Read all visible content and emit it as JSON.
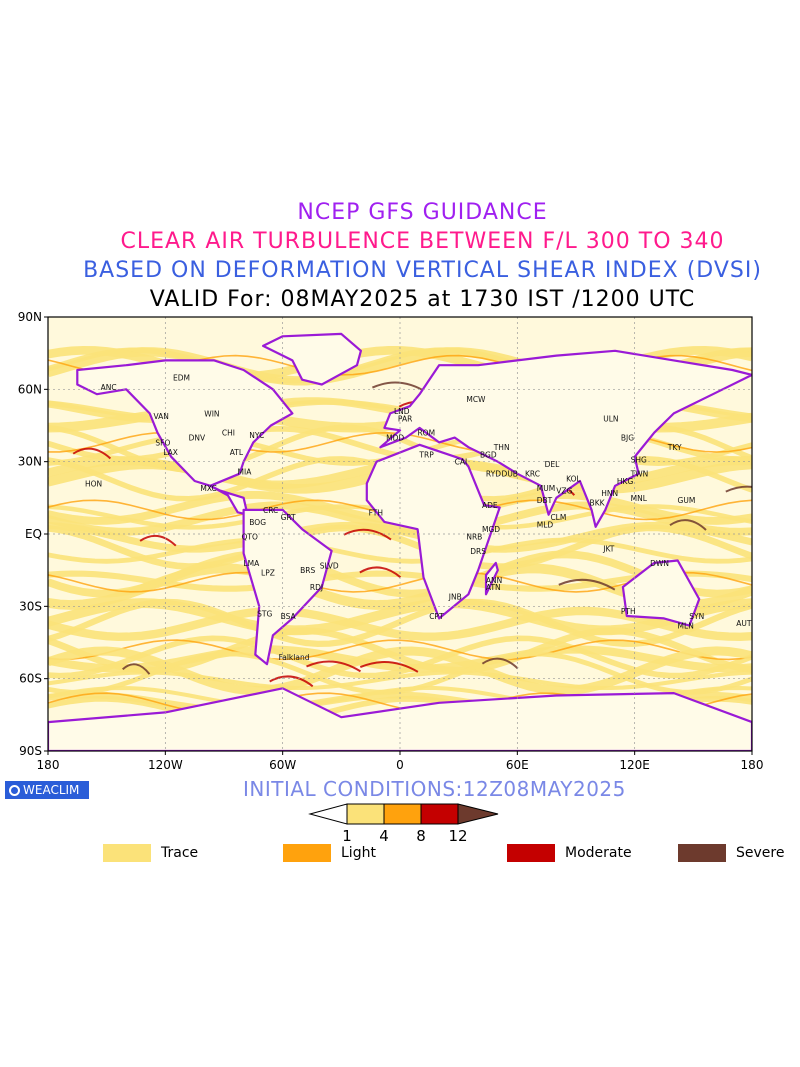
{
  "titles": {
    "line1": "NCEP GFS GUIDANCE",
    "line2": "CLEAR AIR TURBULENCE BETWEEN F/L 300 TO 340",
    "line3": "BASED ON DEFORMATION VERTICAL SHEAR INDEX (DVSI)",
    "line4": "VALID For: 08MAY2025 at 1730 IST /1200 UTC"
  },
  "axes": {
    "lat_labels": [
      "90N",
      "60N",
      "30N",
      "EQ",
      "30S",
      "60S",
      "90S"
    ],
    "lon_labels": [
      "180",
      "120W",
      "60W",
      "0",
      "60E",
      "120E",
      "180"
    ]
  },
  "stations": [
    {
      "name": "ANC",
      "lon": -150,
      "lat": 61
    },
    {
      "name": "EDM",
      "lon": -113,
      "lat": 65
    },
    {
      "name": "VAN",
      "lon": -123,
      "lat": 49
    },
    {
      "name": "WIN",
      "lon": -97,
      "lat": 50
    },
    {
      "name": "SFO",
      "lon": -122,
      "lat": 38
    },
    {
      "name": "LAX",
      "lon": -118,
      "lat": 34
    },
    {
      "name": "DNV",
      "lon": -105,
      "lat": 40
    },
    {
      "name": "CHI",
      "lon": -88,
      "lat": 42
    },
    {
      "name": "NYC",
      "lon": -74,
      "lat": 41
    },
    {
      "name": "ATL",
      "lon": -84,
      "lat": 34
    },
    {
      "name": "MIA",
      "lon": -80,
      "lat": 26
    },
    {
      "name": "MXC",
      "lon": -99,
      "lat": 19
    },
    {
      "name": "HON",
      "lon": -158,
      "lat": 21
    },
    {
      "name": "BOG",
      "lon": -74,
      "lat": 5
    },
    {
      "name": "CRC",
      "lon": -67,
      "lat": 10
    },
    {
      "name": "GRT",
      "lon": -58,
      "lat": 7
    },
    {
      "name": "QTO",
      "lon": -78,
      "lat": -1
    },
    {
      "name": "LMA",
      "lon": -77,
      "lat": -12
    },
    {
      "name": "LPZ",
      "lon": -68,
      "lat": -16
    },
    {
      "name": "BRS",
      "lon": -48,
      "lat": -15
    },
    {
      "name": "SLVD",
      "lon": -38,
      "lat": -13
    },
    {
      "name": "RDJ",
      "lon": -43,
      "lat": -22
    },
    {
      "name": "STG",
      "lon": -70,
      "lat": -33
    },
    {
      "name": "BSA",
      "lon": -58,
      "lat": -34
    },
    {
      "name": "Falkland",
      "lon": -59,
      "lat": -51
    },
    {
      "name": "LND",
      "lon": 0,
      "lat": 51
    },
    {
      "name": "PAR",
      "lon": 2,
      "lat": 48
    },
    {
      "name": "MDD",
      "lon": -4,
      "lat": 40
    },
    {
      "name": "ROM",
      "lon": 12,
      "lat": 42
    },
    {
      "name": "MCW",
      "lon": 37,
      "lat": 56
    },
    {
      "name": "TRP",
      "lon": 13,
      "lat": 33
    },
    {
      "name": "CAI",
      "lon": 31,
      "lat": 30
    },
    {
      "name": "BGD",
      "lon": 44,
      "lat": 33
    },
    {
      "name": "THN",
      "lon": 51,
      "lat": 36
    },
    {
      "name": "RYD",
      "lon": 47,
      "lat": 25
    },
    {
      "name": "DUB",
      "lon": 55,
      "lat": 25
    },
    {
      "name": "KRC",
      "lon": 67,
      "lat": 25
    },
    {
      "name": "DEL",
      "lon": 77,
      "lat": 29
    },
    {
      "name": "MUM",
      "lon": 73,
      "lat": 19
    },
    {
      "name": "DBT",
      "lon": 73,
      "lat": 14
    },
    {
      "name": "VZG",
      "lon": 83,
      "lat": 18
    },
    {
      "name": "KOL",
      "lon": 88,
      "lat": 23
    },
    {
      "name": "CLM",
      "lon": 80,
      "lat": 7
    },
    {
      "name": "MLD",
      "lon": 73,
      "lat": 4
    },
    {
      "name": "ADE",
      "lon": 45,
      "lat": 12
    },
    {
      "name": "MGD",
      "lon": 45,
      "lat": 2
    },
    {
      "name": "NRB",
      "lon": 37,
      "lat": -1
    },
    {
      "name": "DRS",
      "lon": 39,
      "lat": -7
    },
    {
      "name": "ANN",
      "lon": 47,
      "lat": -19
    },
    {
      "name": "ATN",
      "lon": 47,
      "lat": -22
    },
    {
      "name": "CPT",
      "lon": 18,
      "lat": -34
    },
    {
      "name": "JNB",
      "lon": 28,
      "lat": -26
    },
    {
      "name": "FTH",
      "lon": -13,
      "lat": 9
    },
    {
      "name": "BKK",
      "lon": 100,
      "lat": 13
    },
    {
      "name": "HNN",
      "lon": 106,
      "lat": 17
    },
    {
      "name": "HKG",
      "lon": 114,
      "lat": 22
    },
    {
      "name": "SHG",
      "lon": 121,
      "lat": 31
    },
    {
      "name": "BJG",
      "lon": 116,
      "lat": 40
    },
    {
      "name": "TWN",
      "lon": 121,
      "lat": 25
    },
    {
      "name": "MNL",
      "lon": 121,
      "lat": 15
    },
    {
      "name": "TKY",
      "lon": 140,
      "lat": 36
    },
    {
      "name": "ULN",
      "lon": 107,
      "lat": 48
    },
    {
      "name": "GUM",
      "lon": 145,
      "lat": 14
    },
    {
      "name": "JKT",
      "lon": 107,
      "lat": -6
    },
    {
      "name": "DWN",
      "lon": 131,
      "lat": -12
    },
    {
      "name": "PTH",
      "lon": 116,
      "lat": -32
    },
    {
      "name": "SYN",
      "lon": 151,
      "lat": -34
    },
    {
      "name": "MLN",
      "lon": 145,
      "lat": -38
    },
    {
      "name": "AUT",
      "lon": 175,
      "lat": -37
    }
  ],
  "footer": {
    "logo_text": "WEACLIM",
    "initial_conditions": "INITIAL CONDITIONS:12Z08MAY2025"
  },
  "colorbar": {
    "ticks": [
      "1",
      "4",
      "8",
      "12"
    ],
    "colors": {
      "below": "#ffffff",
      "trace": "#fbe279",
      "light": "#ffa20d",
      "moderate": "#c40000",
      "severe": "#6d3a2d"
    }
  },
  "legend": [
    {
      "label": "Trace",
      "color": "#fbe279"
    },
    {
      "label": "Light",
      "color": "#ffa20d"
    },
    {
      "label": "Moderate",
      "color": "#c40000"
    },
    {
      "label": "Severe",
      "color": "#6d3a2d"
    }
  ],
  "map_colors": {
    "coast": "#9a1ad6",
    "border": "#7a1fb0"
  }
}
